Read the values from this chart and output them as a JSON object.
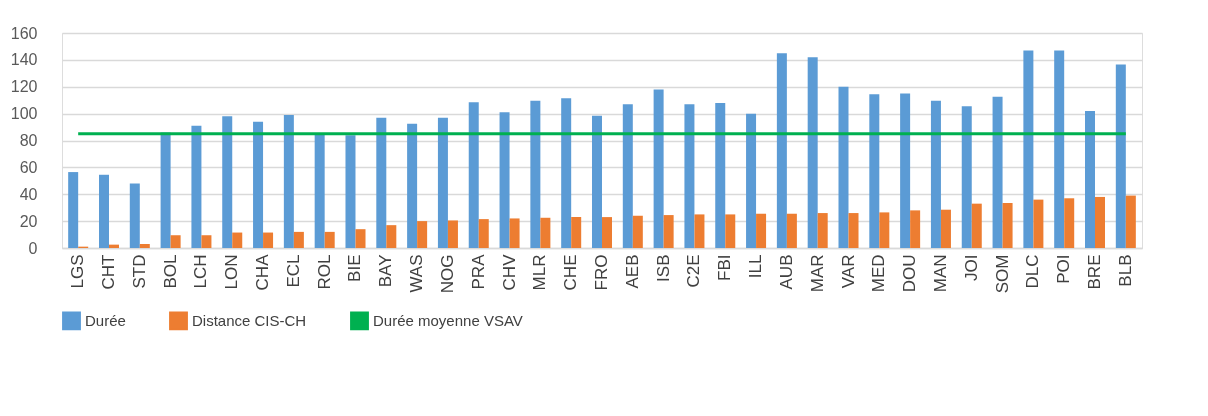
{
  "chart_data": {
    "type": "bar",
    "categories": [
      "LGS",
      "CHT",
      "STD",
      "BOL",
      "LCH",
      "LON",
      "CHA",
      "ECL",
      "ROL",
      "BIE",
      "BAY",
      "WAS",
      "NOG",
      "PRA",
      "CHV",
      "MLR",
      "CHE",
      "FRO",
      "AEB",
      "ISB",
      "C2E",
      "FBI",
      "ILL",
      "AUB",
      "MAR",
      "VAR",
      "MED",
      "DOU",
      "MAN",
      "JOI",
      "SOM",
      "DLC",
      "POI",
      "BRE",
      "BLB"
    ],
    "series": [
      {
        "name": "Durée",
        "color": "#5b9bd5",
        "values": [
          56.5,
          54.5,
          48,
          86,
          91,
          98,
          94,
          99,
          85,
          84,
          97,
          92.5,
          97,
          108.5,
          101,
          109.5,
          111.5,
          98.5,
          107,
          118,
          107,
          108,
          100,
          145,
          142,
          120,
          114.5,
          115,
          109.5,
          105.5,
          112.5,
          147,
          147,
          102,
          136.5
        ]
      },
      {
        "name": "Distance CIS-CH",
        "color": "#ed7d31",
        "values": [
          1,
          2.5,
          3,
          9.5,
          9.5,
          11.5,
          11.5,
          12,
          12,
          14,
          17,
          20,
          20.5,
          21.5,
          22,
          22.5,
          23,
          23,
          24,
          24.5,
          25,
          25,
          25.5,
          25.5,
          26,
          26,
          26.5,
          28,
          28.5,
          33,
          33.5,
          36,
          37,
          38,
          39
        ]
      },
      {
        "name": "Durée moyenne VSAV",
        "type": "line",
        "color": "#00b050",
        "values": [
          85,
          85,
          85,
          85,
          85,
          85,
          85,
          85,
          85,
          85,
          85,
          85,
          85,
          85,
          85,
          85,
          85,
          85,
          85,
          85,
          85,
          85,
          85,
          85,
          85,
          85,
          85,
          85,
          85,
          85,
          85,
          85,
          85,
          85,
          85
        ]
      }
    ],
    "ylim": [
      0,
      160
    ],
    "yticks": [
      0,
      20,
      40,
      60,
      80,
      100,
      120,
      140,
      160
    ],
    "grid": "y",
    "legend": "bottom"
  }
}
